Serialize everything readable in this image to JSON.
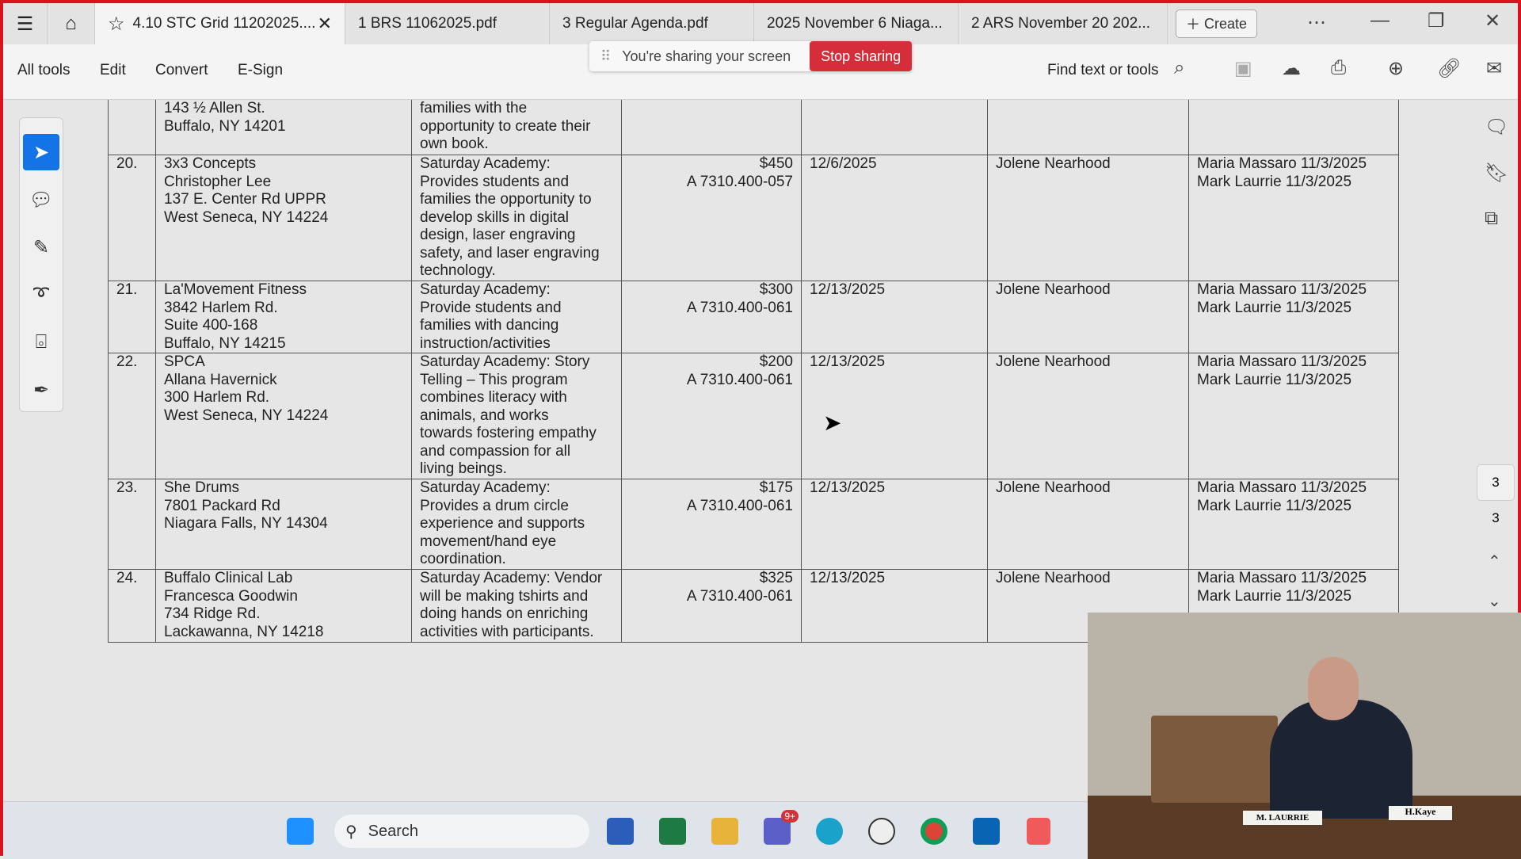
{
  "tabs": [
    {
      "label": "4.10 STC Grid 11202025....",
      "active": true
    },
    {
      "label": "1 BRS 11062025.pdf"
    },
    {
      "label": "3 Regular Agenda.pdf"
    },
    {
      "label": "2025 November 6 Niaga..."
    },
    {
      "label": "2 ARS November 20 202..."
    }
  ],
  "create_label": "Create",
  "toolbar": {
    "all_tools": "All tools",
    "edit": "Edit",
    "convert": "Convert",
    "esign": "E-Sign",
    "find": "Find text or tools"
  },
  "share": {
    "text": "You're sharing your screen",
    "stop": "Stop sharing"
  },
  "table": {
    "rows": [
      {
        "num": "",
        "vendor": "143 ½ Allen St.\nBuffalo, NY 14201",
        "desc": "families with the\nopportunity to create their\nown book.",
        "amount": "",
        "date": "",
        "contact": "",
        "approvals": ""
      },
      {
        "num": "20.",
        "vendor": "3x3 Concepts\nChristopher Lee\n137 E. Center Rd UPPR\nWest Seneca, NY 14224",
        "desc": "Saturday Academy:\nProvides students and\nfamilies the opportunity to\ndevelop skills in digital\ndesign, laser engraving\nsafety, and laser engraving\ntechnology.",
        "amount": "$450\nA 7310.400-057",
        "date": "12/6/2025",
        "contact": "Jolene Nearhood",
        "approvals": "Maria Massaro 11/3/2025\nMark Laurrie 11/3/2025"
      },
      {
        "num": "21.",
        "vendor": "La'Movement Fitness\n3842 Harlem Rd.\nSuite 400-168\nBuffalo, NY 14215",
        "desc": "Saturday Academy:\nProvide students and\nfamilies with dancing\ninstruction/activities",
        "amount": "$300\nA 7310.400-061",
        "date": "12/13/2025",
        "contact": "Jolene Nearhood",
        "approvals": "Maria Massaro 11/3/2025\nMark Laurrie 11/3/2025"
      },
      {
        "num": "22.",
        "vendor": "SPCA\nAllana Havernick\n300 Harlem Rd.\nWest Seneca, NY 14224",
        "desc": "Saturday Academy: Story\nTelling – This program\ncombines literacy with\nanimals, and works\ntowards fostering empathy\nand compassion for all\nliving beings.",
        "amount": "$200\nA 7310.400-061",
        "date": "12/13/2025",
        "contact": "Jolene Nearhood",
        "approvals": "Maria Massaro 11/3/2025\nMark Laurrie 11/3/2025"
      },
      {
        "num": "23.",
        "vendor": "She Drums\n7801 Packard Rd\nNiagara Falls, NY 14304",
        "desc": "Saturday Academy:\nProvides a drum circle\nexperience and supports\nmovement/hand eye\ncoordination.",
        "amount": "$175\nA 7310.400-061",
        "date": "12/13/2025",
        "contact": "Jolene Nearhood",
        "approvals": "Maria Massaro 11/3/2025\nMark Laurrie 11/3/2025"
      },
      {
        "num": "24.",
        "vendor": "Buffalo Clinical Lab\nFrancesca Goodwin\n734 Ridge Rd.\nLackawanna, NY 14218",
        "desc": "Saturday Academy: Vendor\nwill be making tshirts and\ndoing hands on enriching\nactivities with participants.",
        "amount": "$325\nA 7310.400-061",
        "date": "12/13/2025",
        "contact": "Jolene Nearhood",
        "approvals": "Maria Massaro 11/3/2025\nMark Laurrie 11/3/2025"
      }
    ]
  },
  "page": {
    "current": "3",
    "total": "3"
  },
  "taskbar": {
    "search": "Search",
    "teams_badge": "9+"
  },
  "video": {
    "nameplate1": "M. LAURRIE",
    "nameplate2": "H.Kaye"
  },
  "colors": {
    "share_border": "#d9141d",
    "stop": "#d62d3a"
  }
}
